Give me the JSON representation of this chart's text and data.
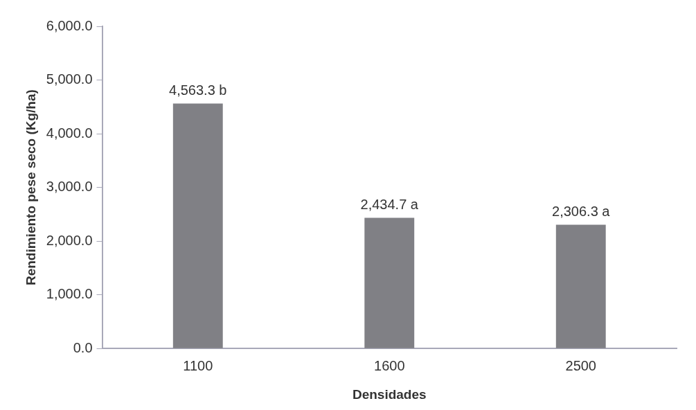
{
  "chart_data": {
    "type": "bar",
    "xlabel": "Densidades",
    "ylabel": "Rendimiento pese seco (Kg/ha)",
    "categories": [
      "1100",
      "1600",
      "2500"
    ],
    "values": [
      4563.3,
      2434.7,
      2306.3
    ],
    "value_labels": [
      "4,563.3 b",
      "2,434.7 a",
      "2,306.3 a"
    ],
    "color": "#808085",
    "ylim": [
      0,
      6000
    ],
    "yticks": [
      {
        "value": 0,
        "label": "0.0"
      },
      {
        "value": 1000,
        "label": "1,000.0"
      },
      {
        "value": 2000,
        "label": "2,000.0"
      },
      {
        "value": 3000,
        "label": "3,000.0"
      },
      {
        "value": 4000,
        "label": "4,000.0"
      },
      {
        "value": 5000,
        "label": "5,000.0"
      },
      {
        "value": 6000,
        "label": "6,000.0"
      }
    ],
    "grid": false,
    "legend": false
  }
}
